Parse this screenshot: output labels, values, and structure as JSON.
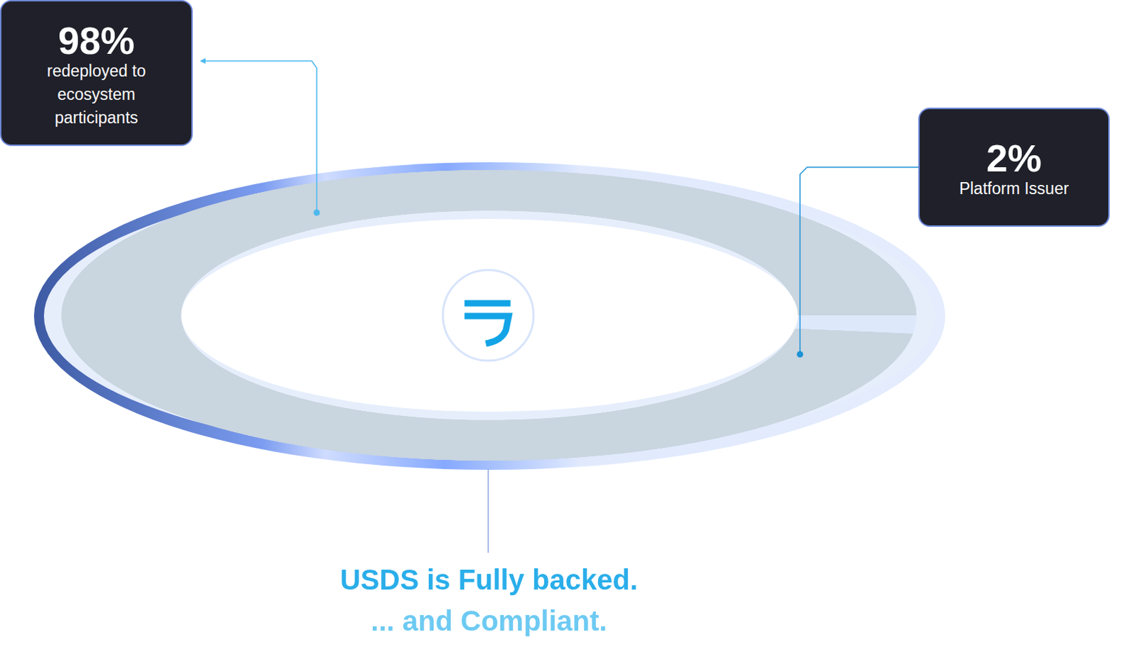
{
  "chart_data": {
    "type": "doughnut",
    "categories": [
      "redeployed to ecosystem participants",
      "Platform Issuer"
    ],
    "values": [
      98,
      2
    ],
    "value_labels": [
      "98%",
      "2%"
    ],
    "colors": [
      "#c9d5df",
      "#dde8fb"
    ],
    "data_labels": true,
    "annotations": [
      "USDS is Fully backed.",
      "... and Compliant."
    ]
  }
}
